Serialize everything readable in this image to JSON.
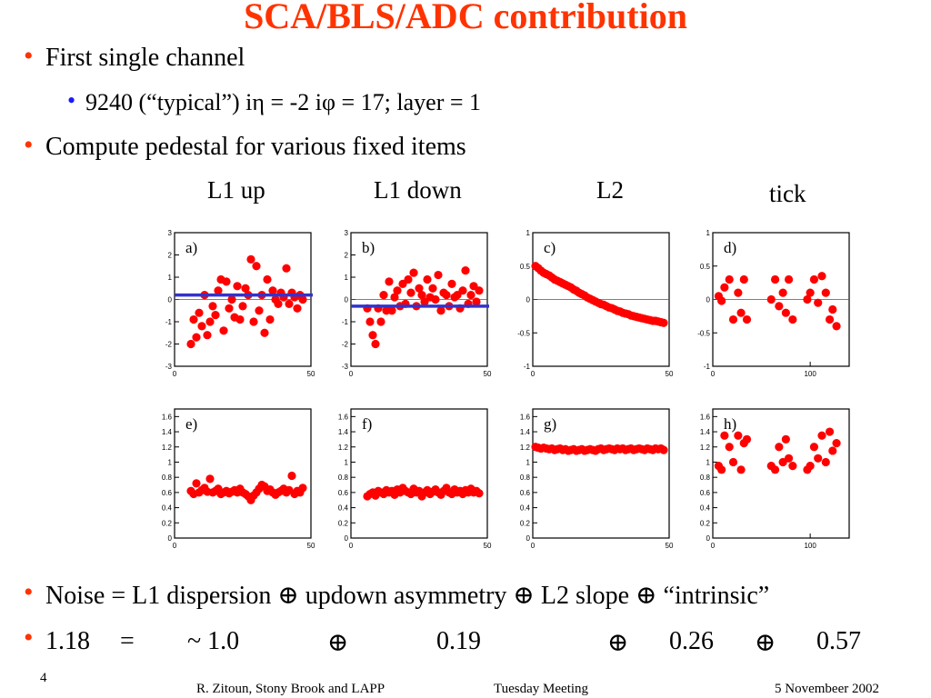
{
  "title": "SCA/BLS/ADC contribution",
  "bullets": {
    "b1": "First single channel",
    "b1_sub": "9240 (“typical”) iη = -2  iφ = 17; layer = 1",
    "b2": "Compute pedestal for various fixed items",
    "b3": "Noise = L1 dispersion ⊕ updown asymmetry ⊕ L2 slope ⊕ “intrinsic”"
  },
  "equation": {
    "lhs": "1.18",
    "eq": "=",
    "t1": "~ 1.0",
    "op1": "⊕",
    "t2": "0.19",
    "op2": "⊕",
    "t3": "0.26",
    "op3": "⊕",
    "t4": "0.57"
  },
  "column_labels": [
    "L1 up",
    "L1 down",
    "L2",
    "tick"
  ],
  "footer": {
    "page": "4",
    "author": "R. Zitoun, Stony Brook and LAPP",
    "meeting": "Tuesday Meeting",
    "date": "5 Novembeer 2002"
  },
  "colors": {
    "title": "#ff3300",
    "bullet": "#ff3300",
    "sub_bullet": "#1a1aff",
    "points": "#ff0000",
    "fit_line": "#3333cc"
  },
  "chart_data": [
    {
      "type": "scatter",
      "label": "a)",
      "xlim": [
        0,
        50
      ],
      "ylim": [
        -3,
        3
      ],
      "xticks": [
        "0",
        "50"
      ],
      "yticks": [
        "3",
        "2",
        "1",
        "0",
        "-1",
        "-2",
        "-3"
      ],
      "fit_y": 0.2,
      "x": [
        6,
        7,
        8,
        9,
        10,
        11,
        12,
        13,
        14,
        15,
        16,
        17,
        18,
        19,
        20,
        21,
        22,
        23,
        24,
        25,
        26,
        27,
        28,
        29,
        30,
        31,
        32,
        33,
        34,
        35,
        36,
        37,
        38,
        39,
        40,
        41,
        42,
        43,
        44,
        45,
        46,
        47
      ],
      "y": [
        -2.0,
        -0.9,
        -1.7,
        -0.6,
        -1.2,
        0.2,
        -1.6,
        -1.0,
        -0.3,
        -0.7,
        0.4,
        0.9,
        -1.4,
        0.8,
        -0.4,
        0.0,
        -0.8,
        0.6,
        -0.9,
        -0.3,
        0.5,
        0.2,
        1.8,
        -1.0,
        1.5,
        -0.5,
        0.2,
        -1.5,
        0.9,
        -0.9,
        0.4,
        0.0,
        -0.2,
        0.3,
        0.1,
        1.4,
        -0.2,
        0.3,
        0.1,
        -0.4,
        0.2,
        0.0
      ]
    },
    {
      "type": "scatter",
      "label": "b)",
      "xlim": [
        0,
        50
      ],
      "ylim": [
        -3,
        3
      ],
      "xticks": [
        "0",
        "50"
      ],
      "yticks": [
        "3",
        "2",
        "1",
        "0",
        "-1",
        "-2",
        "-3"
      ],
      "fit_y": -0.3,
      "x": [
        6,
        7,
        8,
        9,
        10,
        11,
        12,
        13,
        14,
        15,
        16,
        17,
        18,
        19,
        20,
        21,
        22,
        23,
        24,
        25,
        26,
        27,
        28,
        29,
        30,
        31,
        32,
        33,
        34,
        35,
        36,
        37,
        38,
        39,
        40,
        41,
        42,
        43,
        44,
        45,
        46,
        47
      ],
      "y": [
        -0.4,
        -1.0,
        -1.6,
        -2.0,
        -0.4,
        -1.0,
        0.2,
        -0.5,
        0.8,
        -0.5,
        0.1,
        0.4,
        -0.3,
        0.7,
        -0.2,
        0.9,
        0.3,
        1.2,
        -0.3,
        0.5,
        0.2,
        -0.1,
        0.9,
        0.1,
        0.5,
        0.0,
        1.1,
        -0.5,
        0.3,
        0.2,
        -0.3,
        0.7,
        0.1,
        0.2,
        -0.4,
        0.4,
        1.3,
        -0.2,
        0.2,
        0.6,
        -0.1,
        0.4
      ]
    },
    {
      "type": "scatter",
      "label": "c)",
      "xlim": [
        0,
        50
      ],
      "ylim": [
        -1,
        1
      ],
      "xticks": [
        "0",
        "50"
      ],
      "yticks": [
        "1",
        "0.5",
        "0",
        "-0.5",
        "-1"
      ],
      "x": [
        1,
        2,
        3,
        4,
        5,
        6,
        7,
        8,
        9,
        10,
        11,
        12,
        13,
        14,
        15,
        16,
        17,
        18,
        19,
        20,
        21,
        22,
        23,
        24,
        25,
        26,
        27,
        28,
        29,
        30,
        31,
        32,
        33,
        34,
        35,
        36,
        37,
        38,
        39,
        40,
        41,
        42,
        43,
        44,
        45,
        46,
        47,
        48
      ],
      "y": [
        0.5,
        0.47,
        0.43,
        0.4,
        0.38,
        0.36,
        0.33,
        0.3,
        0.28,
        0.26,
        0.24,
        0.22,
        0.2,
        0.18,
        0.15,
        0.13,
        0.1,
        0.08,
        0.06,
        0.03,
        0.01,
        -0.01,
        -0.03,
        -0.05,
        -0.07,
        -0.08,
        -0.1,
        -0.12,
        -0.13,
        -0.15,
        -0.17,
        -0.18,
        -0.2,
        -0.21,
        -0.22,
        -0.24,
        -0.25,
        -0.26,
        -0.27,
        -0.28,
        -0.29,
        -0.3,
        -0.31,
        -0.32,
        -0.32,
        -0.33,
        -0.34,
        -0.35
      ]
    },
    {
      "type": "scatter",
      "label": "d)",
      "xlim": [
        0,
        140
      ],
      "ylim": [
        -1,
        1
      ],
      "xticks": [
        "0",
        "100"
      ],
      "yticks": [
        "1",
        "0.5",
        "0",
        "-0.5",
        "-1"
      ],
      "x": [
        6,
        9,
        12,
        17,
        21,
        26,
        29,
        32,
        35,
        60,
        64,
        68,
        72,
        75,
        78,
        82,
        97,
        100,
        104,
        108,
        112,
        116,
        120,
        123,
        127
      ],
      "y": [
        0.05,
        -0.02,
        0.18,
        0.3,
        -0.3,
        0.1,
        -0.2,
        0.3,
        -0.3,
        0.0,
        0.3,
        -0.1,
        0.1,
        -0.2,
        0.3,
        -0.3,
        0.0,
        0.1,
        0.3,
        -0.05,
        0.35,
        0.1,
        -0.3,
        -0.15,
        -0.4
      ]
    },
    {
      "type": "scatter",
      "label": "e)",
      "xlim": [
        0,
        50
      ],
      "ylim": [
        0,
        1.7
      ],
      "xticks": [
        "0",
        "50"
      ],
      "yticks": [
        "1.6",
        "1.4",
        "1.2",
        "1",
        "0.8",
        "0.6",
        "0.4",
        "0.2",
        "0"
      ],
      "x": [
        6,
        7,
        8,
        9,
        10,
        11,
        12,
        13,
        14,
        15,
        16,
        17,
        18,
        19,
        20,
        21,
        22,
        23,
        24,
        25,
        26,
        27,
        28,
        29,
        30,
        31,
        32,
        33,
        34,
        35,
        36,
        37,
        38,
        39,
        40,
        41,
        42,
        43,
        44,
        45,
        46,
        47
      ],
      "y": [
        0.62,
        0.58,
        0.72,
        0.6,
        0.63,
        0.66,
        0.61,
        0.78,
        0.6,
        0.62,
        0.65,
        0.58,
        0.6,
        0.62,
        0.59,
        0.61,
        0.63,
        0.6,
        0.65,
        0.6,
        0.58,
        0.55,
        0.5,
        0.56,
        0.6,
        0.65,
        0.7,
        0.68,
        0.62,
        0.64,
        0.6,
        0.57,
        0.6,
        0.62,
        0.65,
        0.6,
        0.63,
        0.82,
        0.58,
        0.62,
        0.6,
        0.66
      ]
    },
    {
      "type": "scatter",
      "label": "f)",
      "xlim": [
        0,
        50
      ],
      "ylim": [
        0,
        1.7
      ],
      "xticks": [
        "0",
        "50"
      ],
      "yticks": [
        "1.6",
        "1.4",
        "1.2",
        "1",
        "0.8",
        "0.6",
        "0.4",
        "0.2",
        "0"
      ],
      "x": [
        6,
        7,
        8,
        9,
        10,
        11,
        12,
        13,
        14,
        15,
        16,
        17,
        18,
        19,
        20,
        21,
        22,
        23,
        24,
        25,
        26,
        27,
        28,
        29,
        30,
        31,
        32,
        33,
        34,
        35,
        36,
        37,
        38,
        39,
        40,
        41,
        42,
        43,
        44,
        45,
        46,
        47
      ],
      "y": [
        0.55,
        0.58,
        0.6,
        0.56,
        0.62,
        0.6,
        0.58,
        0.63,
        0.6,
        0.62,
        0.57,
        0.64,
        0.6,
        0.66,
        0.62,
        0.6,
        0.58,
        0.65,
        0.6,
        0.62,
        0.55,
        0.6,
        0.63,
        0.58,
        0.61,
        0.64,
        0.6,
        0.57,
        0.62,
        0.66,
        0.6,
        0.58,
        0.64,
        0.6,
        0.62,
        0.58,
        0.63,
        0.6,
        0.65,
        0.6,
        0.62,
        0.59
      ]
    },
    {
      "type": "scatter",
      "label": "g)",
      "xlim": [
        0,
        50
      ],
      "ylim": [
        0,
        1.7
      ],
      "xticks": [
        "0",
        "50"
      ],
      "yticks": [
        "1.6",
        "1.4",
        "1.2",
        "1",
        "0.8",
        "0.6",
        "0.4",
        "0.2",
        "0"
      ],
      "x": [
        1,
        2,
        3,
        4,
        5,
        6,
        7,
        8,
        9,
        10,
        11,
        12,
        13,
        14,
        15,
        16,
        17,
        18,
        19,
        20,
        21,
        22,
        23,
        24,
        25,
        26,
        27,
        28,
        29,
        30,
        31,
        32,
        33,
        34,
        35,
        36,
        37,
        38,
        39,
        40,
        41,
        42,
        43,
        44,
        45,
        46,
        47,
        48
      ],
      "y": [
        1.2,
        1.19,
        1.18,
        1.19,
        1.18,
        1.17,
        1.18,
        1.16,
        1.17,
        1.18,
        1.16,
        1.17,
        1.15,
        1.16,
        1.17,
        1.15,
        1.16,
        1.17,
        1.15,
        1.16,
        1.17,
        1.16,
        1.15,
        1.17,
        1.18,
        1.16,
        1.17,
        1.18,
        1.17,
        1.16,
        1.18,
        1.17,
        1.18,
        1.16,
        1.17,
        1.18,
        1.16,
        1.17,
        1.18,
        1.17,
        1.16,
        1.18,
        1.17,
        1.16,
        1.18,
        1.17,
        1.18,
        1.16
      ]
    },
    {
      "type": "scatter",
      "label": "h)",
      "xlim": [
        0,
        140
      ],
      "ylim": [
        0,
        1.7
      ],
      "xticks": [
        "0",
        "100"
      ],
      "yticks": [
        "1.6",
        "1.4",
        "1.2",
        "1",
        "0.8",
        "0.6",
        "0.4",
        "0.2",
        "0"
      ],
      "x": [
        6,
        9,
        12,
        17,
        21,
        26,
        29,
        32,
        35,
        60,
        64,
        68,
        72,
        75,
        78,
        82,
        97,
        100,
        104,
        108,
        112,
        116,
        120,
        123,
        127
      ],
      "y": [
        0.95,
        0.9,
        1.35,
        1.2,
        1.0,
        1.35,
        0.9,
        1.25,
        1.3,
        0.95,
        0.9,
        1.2,
        1.0,
        1.3,
        1.05,
        0.95,
        0.9,
        0.95,
        1.2,
        1.05,
        1.35,
        1.0,
        1.4,
        1.15,
        1.25
      ]
    }
  ]
}
